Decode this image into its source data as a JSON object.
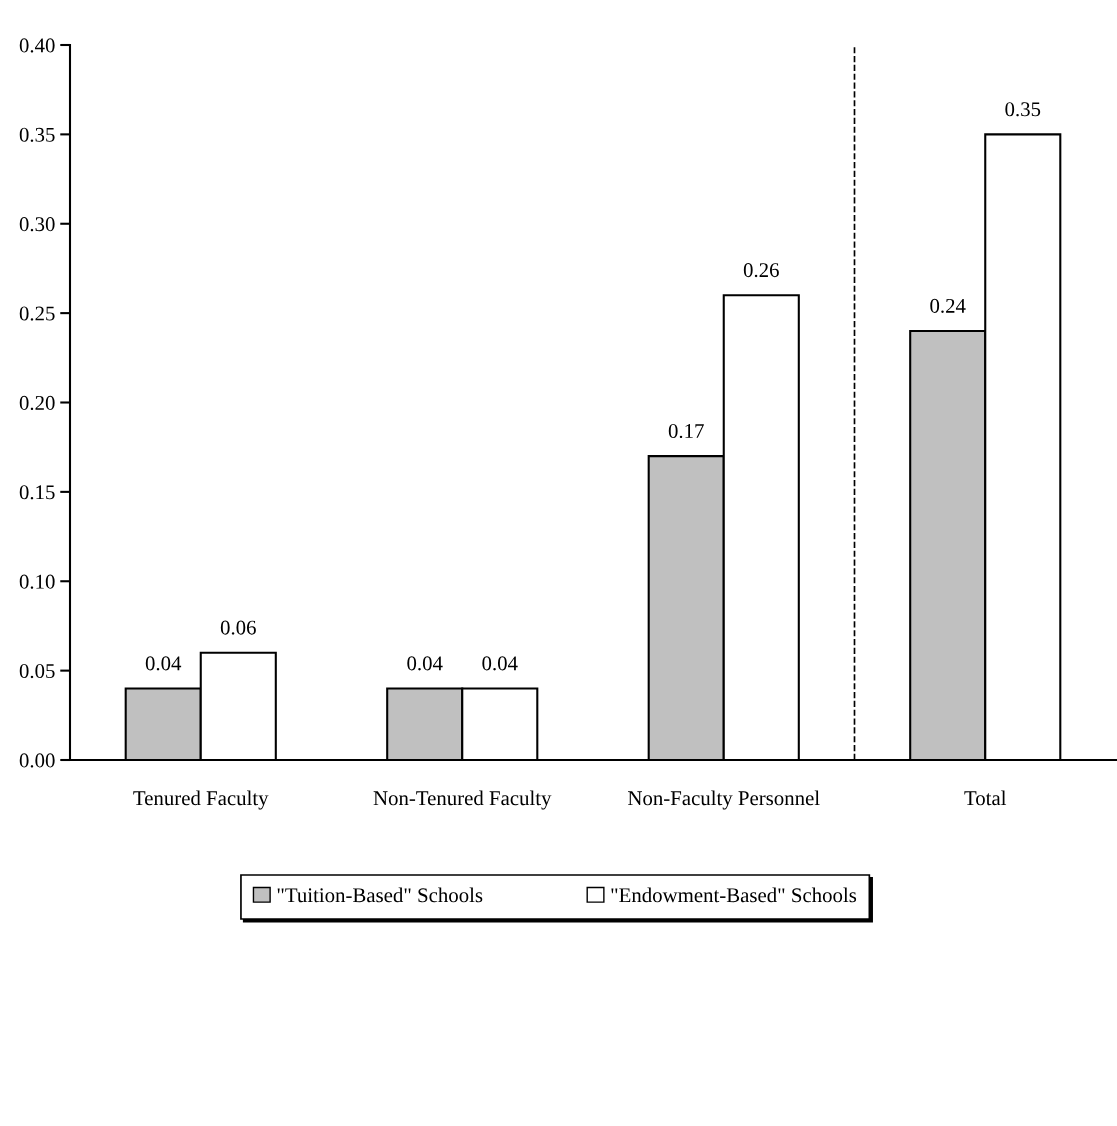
{
  "chart_data": {
    "type": "bar",
    "categories": [
      "Tenured Faculty",
      "Non-Tenured Faculty",
      "Non-Faculty Personnel",
      "Total"
    ],
    "series": [
      {
        "name": "\"Tuition-Based\" Schools",
        "color": "#c0c0c0",
        "values": [
          0.04,
          0.04,
          0.17,
          0.24
        ]
      },
      {
        "name": "\"Endowment-Based\" Schools",
        "color": "#ffffff",
        "values": [
          0.06,
          0.04,
          0.26,
          0.35
        ]
      }
    ],
    "ylim": [
      0,
      0.4
    ],
    "yticks": [
      {
        "value": 0,
        "label": "0.00"
      },
      {
        "value": 0.05,
        "label": "0.05"
      },
      {
        "value": 0.1,
        "label": "0.10"
      },
      {
        "value": 0.15,
        "label": "0.15"
      },
      {
        "value": 0.2,
        "label": "0.20"
      },
      {
        "value": 0.25,
        "label": "0.25"
      },
      {
        "value": 0.3,
        "label": "0.30"
      },
      {
        "value": 0.35,
        "label": "0.35"
      },
      {
        "value": 0.4,
        "label": "0.40"
      }
    ],
    "data_labels": true,
    "grid": false,
    "legend": "bottom"
  }
}
